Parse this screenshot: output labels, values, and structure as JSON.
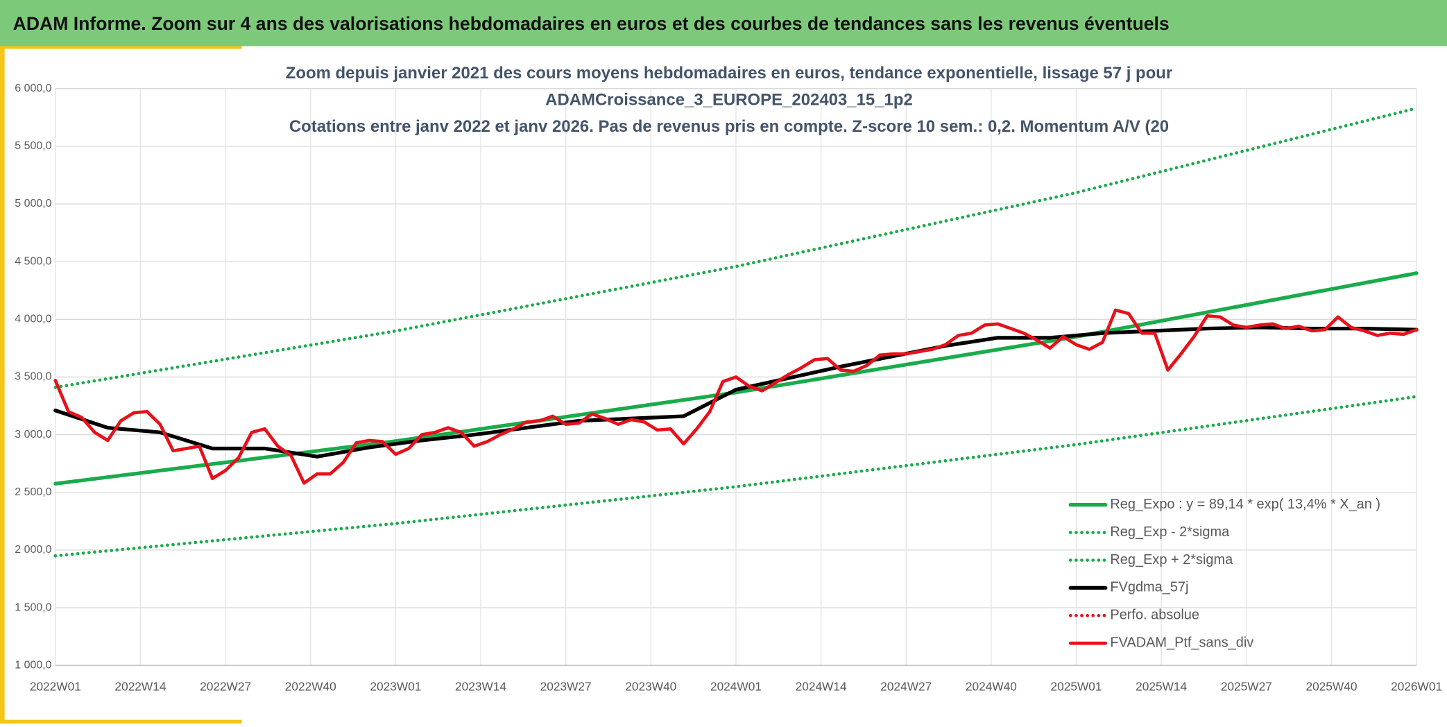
{
  "header": {
    "title": "ADAM Informe. Zoom sur 4 ans des valorisations hebdomadaires en euros et des courbes de tendances sans les revenus éventuels"
  },
  "chart_data": {
    "type": "line",
    "title": [
      "Zoom depuis janvier 2021 des cours moyens hebdomadaires en euros, tendance exponentielle, lissage 57 j pour",
      "ADAMCroissance_3_EUROPE_202403_15_1p2",
      "Cotations entre janv 2022 et janv 2026. Pas de revenus pris en compte. Z-score 10 sem.: 0,2. Momentum A/V (20"
    ],
    "xlim": [
      0,
      208
    ],
    "xticks": [
      {
        "value": 0,
        "label": "2022W01"
      },
      {
        "value": 13,
        "label": "2022W14"
      },
      {
        "value": 26,
        "label": "2022W27"
      },
      {
        "value": 39,
        "label": "2022W40"
      },
      {
        "value": 52,
        "label": "2023W01"
      },
      {
        "value": 65,
        "label": "2023W14"
      },
      {
        "value": 78,
        "label": "2023W27"
      },
      {
        "value": 91,
        "label": "2023W40"
      },
      {
        "value": 104,
        "label": "2024W01"
      },
      {
        "value": 117,
        "label": "2024W14"
      },
      {
        "value": 130,
        "label": "2024W27"
      },
      {
        "value": 143,
        "label": "2024W40"
      },
      {
        "value": 156,
        "label": "2025W01"
      },
      {
        "value": 169,
        "label": "2025W14"
      },
      {
        "value": 182,
        "label": "2025W27"
      },
      {
        "value": 195,
        "label": "2025W40"
      },
      {
        "value": 208,
        "label": "2026W01"
      }
    ],
    "ylim": [
      1000,
      6000
    ],
    "yticks": [
      {
        "value": 1000,
        "label": "1 000,0"
      },
      {
        "value": 1500,
        "label": "1 500,0"
      },
      {
        "value": 2000,
        "label": "2 000,0"
      },
      {
        "value": 2500,
        "label": "2 500,0"
      },
      {
        "value": 3000,
        "label": "3 000,0"
      },
      {
        "value": 3500,
        "label": "3 500,0"
      },
      {
        "value": 4000,
        "label": "4 000,0"
      },
      {
        "value": 4500,
        "label": "4 500,0"
      },
      {
        "value": 5000,
        "label": "5 000,0"
      },
      {
        "value": 5500,
        "label": "5 500,0"
      },
      {
        "value": 6000,
        "label": "6 000,0"
      }
    ],
    "grid": true,
    "legend": "lower right",
    "series": [
      {
        "name": "Reg_Expo : y = 89,14 * exp( 13,4% *  X_an )",
        "color": "#1aab4b",
        "dash": "solid",
        "x": [
          0,
          52,
          104,
          156,
          208
        ],
        "values": [
          2575,
          2944,
          3366,
          3849,
          4400
        ]
      },
      {
        "name": "Reg_Exp - 2*sigma",
        "color": "#1aab4b",
        "dash": "dotted",
        "x": [
          0,
          52,
          104,
          156,
          208
        ],
        "values": [
          1950,
          2230,
          2549,
          2914,
          3330
        ]
      },
      {
        "name": "Reg_Exp + 2*sigma",
        "color": "#1aab4b",
        "dash": "dotted",
        "x": [
          0,
          52,
          104,
          156,
          208
        ],
        "values": [
          3410,
          3899,
          4458,
          5098,
          5830
        ]
      },
      {
        "name": "FVgdma_57j",
        "color": "#000000",
        "dash": "solid",
        "x": [
          0,
          8,
          16,
          24,
          32,
          40,
          48,
          56,
          64,
          72,
          80,
          88,
          96,
          104,
          112,
          120,
          128,
          136,
          144,
          152,
          160,
          168,
          176,
          184,
          192,
          200,
          208
        ],
        "values": [
          3210,
          3060,
          3020,
          2880,
          2880,
          2810,
          2890,
          2950,
          3000,
          3060,
          3120,
          3140,
          3160,
          3390,
          3490,
          3590,
          3680,
          3770,
          3840,
          3840,
          3880,
          3900,
          3920,
          3930,
          3920,
          3920,
          3910
        ]
      },
      {
        "name": "Perfo. absolue",
        "color": "#e8101a",
        "dash": "dotted",
        "x": [],
        "values": []
      },
      {
        "name": "FVADAM_Ptf_sans_div",
        "color": "#e8101a",
        "dash": "solid",
        "x": [
          0,
          2,
          4,
          6,
          8,
          10,
          12,
          14,
          16,
          18,
          20,
          22,
          24,
          26,
          28,
          30,
          32,
          34,
          36,
          38,
          40,
          42,
          44,
          46,
          48,
          50,
          52,
          54,
          56,
          58,
          60,
          62,
          64,
          66,
          68,
          70,
          72,
          74,
          76,
          78,
          80,
          82,
          84,
          86,
          88,
          90,
          92,
          94,
          96,
          98,
          100,
          102,
          104,
          106,
          108,
          110,
          112,
          114,
          116,
          118,
          120,
          122,
          124,
          126,
          128,
          130,
          132,
          134,
          136,
          138,
          140,
          142,
          144,
          146,
          148,
          150,
          152,
          154,
          156,
          158,
          160,
          162,
          164,
          166,
          168,
          170,
          172,
          174,
          176,
          178,
          180,
          182,
          184,
          186,
          188,
          190,
          192,
          194,
          196,
          198,
          200,
          202,
          204,
          206,
          208
        ],
        "values": [
          3470,
          3200,
          3150,
          3020,
          2950,
          3120,
          3190,
          3200,
          3090,
          2860,
          2880,
          2900,
          2620,
          2690,
          2800,
          3020,
          3050,
          2900,
          2820,
          2580,
          2660,
          2660,
          2760,
          2930,
          2950,
          2940,
          2830,
          2880,
          3000,
          3020,
          3060,
          3020,
          2900,
          2940,
          3000,
          3050,
          3110,
          3120,
          3160,
          3090,
          3100,
          3180,
          3140,
          3090,
          3130,
          3110,
          3040,
          3050,
          2920,
          3050,
          3200,
          3460,
          3500,
          3420,
          3380,
          3450,
          3520,
          3580,
          3650,
          3660,
          3560,
          3550,
          3600,
          3690,
          3700,
          3700,
          3720,
          3740,
          3780,
          3860,
          3880,
          3950,
          3960,
          3920,
          3880,
          3820,
          3750,
          3850,
          3780,
          3740,
          3800,
          4080,
          4050,
          3880,
          3880,
          3560,
          3700,
          3850,
          4030,
          4020,
          3950,
          3930,
          3950,
          3960,
          3920,
          3940,
          3900,
          3910,
          4020,
          3930,
          3900,
          3860,
          3880,
          3870,
          3910
        ]
      }
    ]
  }
}
